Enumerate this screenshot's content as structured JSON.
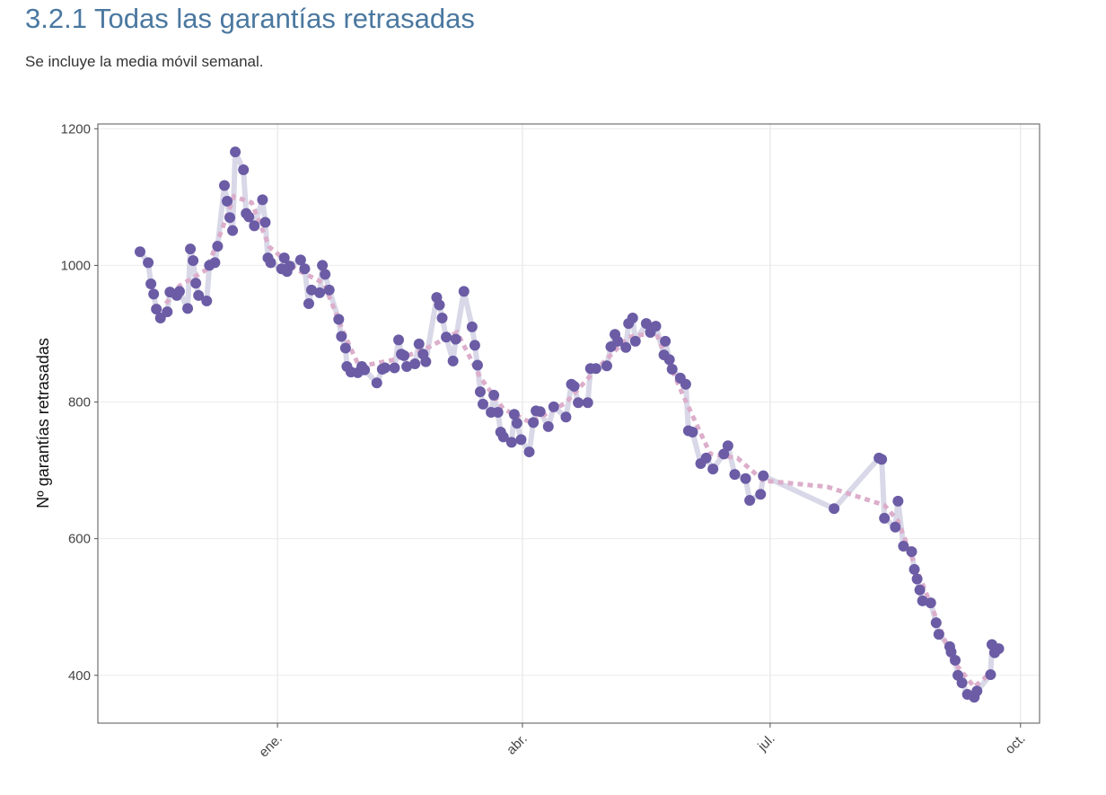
{
  "chart_data": {
    "type": "line",
    "title": "3.2.1 Todas las garantías retrasadas",
    "subtitle": "Se incluye la media móvil semanal.",
    "y_label": "Nº garantías retrasadas",
    "xlim": [
      -66,
      280
    ],
    "xticks": [
      {
        "value": 0,
        "label": "ene."
      },
      {
        "value": 90,
        "label": "abr."
      },
      {
        "value": 181,
        "label": "jul."
      },
      {
        "value": 273,
        "label": "oct."
      }
    ],
    "ylim": [
      330,
      1207
    ],
    "yticks": [
      400,
      600,
      800,
      1000,
      1200
    ],
    "grid": true,
    "series": [
      {
        "color": "#6b5ca5",
        "line_color": "#d8d8e8",
        "style": "line-markers",
        "x": [
          -50.5,
          -47.5,
          -46.5,
          -45.5,
          -44.5,
          -43,
          -40.5,
          -39.5,
          -37,
          -36,
          -33,
          -32,
          -31,
          -30,
          -29,
          -26,
          -25,
          -23,
          -22,
          -19.5,
          -18.5,
          -17.5,
          -16.5,
          -15.5,
          -12.5,
          -11.5,
          -10.5,
          -8.5,
          -5.5,
          -4.5,
          -3.5,
          -2.5,
          1.5,
          2.5,
          3.5,
          4.5,
          8.5,
          10,
          11.5,
          12.5,
          15.5,
          16.5,
          17.5,
          19,
          22.5,
          23.5,
          25,
          25.5,
          27,
          29.5,
          31,
          32,
          36.5,
          38.5,
          39.5,
          43,
          44.5,
          45.5,
          46.5,
          47.5,
          50.5,
          52,
          53.5,
          54.5,
          58.5,
          59.5,
          60.5,
          62,
          64.5,
          65.5,
          68.5,
          71.5,
          72.5,
          73.5,
          74.5,
          75.5,
          78.5,
          79.5,
          81,
          82,
          83,
          86,
          87,
          88,
          89.5,
          92.5,
          94,
          95,
          96.5,
          99.5,
          101.5,
          106,
          108,
          109,
          110.5,
          114,
          115,
          117,
          121,
          122.5,
          124,
          125,
          128,
          129,
          130.5,
          131.5,
          135.5,
          137,
          139,
          142,
          142.5,
          144,
          145,
          148,
          150,
          151,
          152.5,
          155.5,
          157.5,
          160,
          164,
          165.5,
          168,
          172,
          173.5,
          177.5,
          178.5,
          204.5,
          221,
          222,
          223,
          227,
          228,
          230,
          233,
          234,
          235,
          236,
          237,
          240,
          242,
          243,
          247,
          247.5,
          249,
          250,
          251.5,
          253.5,
          256,
          257,
          262,
          262.5,
          263.5,
          265
        ],
        "values": [
          1020,
          1004,
          973,
          958,
          936,
          923,
          932,
          961,
          956,
          962,
          937,
          1024,
          1007,
          974,
          956,
          948,
          1000,
          1004,
          1028,
          1117,
          1094,
          1070,
          1051,
          1166,
          1140,
          1076,
          1071,
          1058,
          1096,
          1063,
          1011,
          1004,
          995,
          1011,
          991,
          999,
          1008,
          995,
          944,
          964,
          960,
          1000,
          987,
          964,
          921,
          896,
          879,
          852,
          844,
          843,
          852,
          847,
          828,
          848,
          850,
          850,
          891,
          870,
          868,
          852,
          856,
          885,
          870,
          859,
          953,
          942,
          923,
          895,
          860,
          892,
          962,
          910,
          883,
          854,
          815,
          797,
          785,
          810,
          785,
          756,
          749,
          741,
          782,
          769,
          745,
          727,
          770,
          787,
          786,
          764,
          793,
          778,
          826,
          823,
          799,
          799,
          849,
          849,
          853,
          881,
          899,
          889,
          880,
          915,
          923,
          889,
          915,
          902,
          911,
          869,
          889,
          862,
          848,
          835,
          826,
          758,
          756,
          710,
          718,
          702,
          724,
          736,
          694,
          688,
          656,
          665,
          692,
          644,
          718,
          716,
          630,
          617,
          655,
          589,
          581,
          555,
          541,
          525,
          509,
          506,
          477,
          460,
          442,
          434,
          422,
          400,
          389,
          372,
          368,
          377,
          401,
          445,
          433,
          439
        ]
      },
      {
        "color": "#dcaecb",
        "style": "dotted",
        "x": [
          -41,
          -36,
          -26,
          -21,
          -16,
          -9.5,
          -3,
          7,
          17,
          25,
          30,
          43,
          53,
          66,
          74.5,
          83,
          93,
          106,
          116,
          129,
          139,
          149,
          159,
          169,
          178.5,
          202,
          223,
          228,
          235,
          241,
          248,
          256,
          261
        ],
        "values": [
          944,
          970,
          994,
          1046,
          1101,
          1092,
          1027,
          994,
          974,
          895,
          852,
          862,
          875,
          902,
          836,
          790,
          770,
          799,
          843,
          895,
          902,
          810,
          724,
          718,
          685,
          676,
          649,
          626,
          553,
          494,
          422,
          383,
          400
        ]
      }
    ]
  }
}
